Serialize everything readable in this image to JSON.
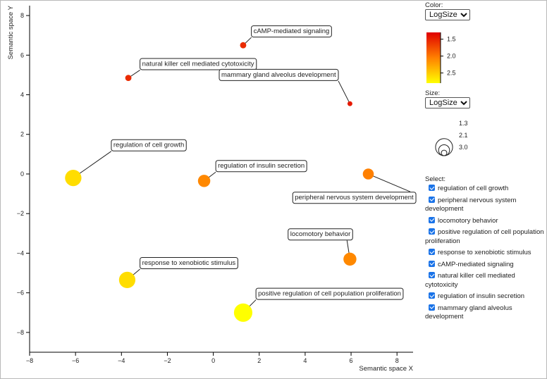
{
  "chart_data": {
    "type": "scatter",
    "xlabel": "Semantic space X",
    "ylabel": "Semantic space Y",
    "xlim": [
      -8,
      8.7
    ],
    "ylim": [
      -9,
      8.5
    ],
    "xticks": [
      -8,
      -6,
      -4,
      -2,
      0,
      2,
      4,
      6,
      8
    ],
    "yticks": [
      -8,
      -6,
      -4,
      -2,
      0,
      2,
      4,
      6,
      8
    ],
    "points": [
      {
        "name": "regulation of cell growth",
        "x": -6.1,
        "y": -0.2,
        "log_size": 2.9,
        "log_color": 2.6
      },
      {
        "name": "regulation of insulin secretion",
        "x": -0.4,
        "y": -0.35,
        "log_size": 2.3,
        "log_color": 2.1
      },
      {
        "name": "peripheral nervous system development",
        "x": 6.75,
        "y": 0.0,
        "log_size": 2.1,
        "log_color": 2.05
      },
      {
        "name": "locomotory behavior",
        "x": 5.95,
        "y": -4.3,
        "log_size": 2.4,
        "log_color": 2.1
      },
      {
        "name": "response to xenobiotic stimulus",
        "x": -3.75,
        "y": -5.35,
        "log_size": 2.9,
        "log_color": 2.6
      },
      {
        "name": "positive regulation of cell population proliferation",
        "x": 1.3,
        "y": -7.0,
        "log_size": 3.2,
        "log_color": 3.0
      },
      {
        "name": "cAMP-mediated signaling",
        "x": 1.3,
        "y": 6.5,
        "log_size": 1.4,
        "log_color": 1.55
      },
      {
        "name": "natural killer cell mediated cytotoxicity",
        "x": -3.7,
        "y": 4.85,
        "log_size": 1.4,
        "log_color": 1.55
      },
      {
        "name": "mammary gland alveolus development",
        "x": 5.95,
        "y": 3.55,
        "log_size": 1.2,
        "log_color": 1.45
      }
    ],
    "labels": [
      {
        "name": "regulation of cell growth",
        "lx": -4.35,
        "ly": 1.45
      },
      {
        "name": "regulation of insulin secretion",
        "lx": 0.2,
        "ly": 0.4
      },
      {
        "name": "peripheral nervous system development",
        "lx": 3.55,
        "ly": -1.2
      },
      {
        "name": "locomotory behavior",
        "lx": 3.35,
        "ly": -3.05
      },
      {
        "name": "response to xenobiotic stimulus",
        "lx": -3.1,
        "ly": -4.5
      },
      {
        "name": "positive regulation of cell population proliferation",
        "lx": 1.95,
        "ly": -6.05
      },
      {
        "name": "cAMP-mediated signaling",
        "lx": 1.75,
        "ly": 7.2
      },
      {
        "name": "natural killer cell mediated cytotoxicity",
        "lx": -3.1,
        "ly": 5.55
      },
      {
        "name": "mammary gland alveolus development",
        "lx": 0.35,
        "ly": 5.0
      }
    ],
    "color_legend": {
      "ticks": [
        1.5,
        2.0,
        2.5
      ],
      "domain": [
        1.3,
        2.8
      ],
      "colors": [
        "#e00000",
        "#ff8000",
        "#ffff00"
      ]
    },
    "size_legend": {
      "ticks": [
        "1.3",
        "2.1",
        "3.0"
      ],
      "values": [
        1.3,
        2.1,
        3.0
      ]
    }
  },
  "controls": {
    "color_label": "Color:",
    "color_value": "LogSize",
    "size_label": "Size:",
    "size_value": "LogSize",
    "select_label": "Select:"
  },
  "select_items": [
    "regulation of cell growth",
    "peripheral nervous system development",
    "locomotory behavior",
    "positive regulation of cell population proliferation",
    "response to xenobiotic stimulus",
    "cAMP-mediated signaling",
    "natural killer cell mediated cytotoxicity",
    "regulation of insulin secretion",
    "mammary gland alveolus development"
  ]
}
